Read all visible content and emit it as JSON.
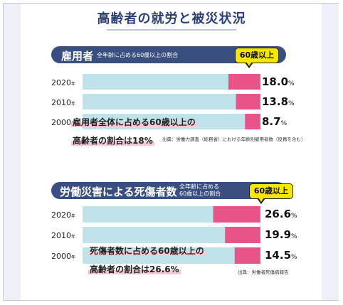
{
  "page_title": "高齢者の就労と被災状況",
  "badge_label": "60歳以上",
  "year_suffix": "年",
  "percent_unit": "%",
  "colors": {
    "navy": "#3a4f80",
    "light_bar": "#bfe3e8",
    "pink_bar": "#e8538a",
    "badge": "#f6e600",
    "highlight": "#f7c9d6"
  },
  "chart_data": [
    {
      "type": "bar",
      "title": "雇用者",
      "subtitle": "全年齢に占める60歳以上の割合",
      "categories": [
        "2020",
        "2010",
        "2000"
      ],
      "values": [
        18.0,
        13.8,
        8.7
      ],
      "value_labels": [
        "18.0",
        "13.8",
        "8.7"
      ],
      "ylim": [
        0,
        100
      ],
      "annotation": [
        "雇用者全体に占める60歳以上の",
        "高齢者の割合は18%"
      ],
      "source": "出典：労働力調査（総務省）における年齢別雇用者数（役員を含む）"
    },
    {
      "type": "bar",
      "title": "労働災害による死傷者数",
      "subtitle": "全年齢に占める 60歳以上の割合",
      "subtitle_lines": [
        "全年齢に占める",
        "60歳以上の割合"
      ],
      "categories": [
        "2020",
        "2010",
        "2000"
      ],
      "values": [
        26.6,
        19.9,
        14.5
      ],
      "value_labels": [
        "26.6",
        "19.9",
        "14.5"
      ],
      "ylim": [
        0,
        100
      ],
      "annotation": [
        "死傷者数に占める60歳以上の",
        "高齢者の割合は26.6%"
      ],
      "source": "出典：労働者死傷病報告"
    }
  ]
}
